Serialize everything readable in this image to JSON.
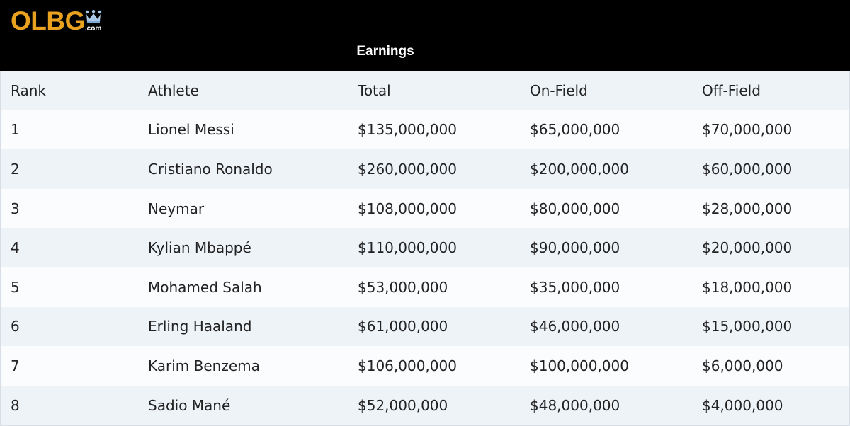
{
  "brand": {
    "logo_text": "OLBG",
    "logo_suffix": ".com",
    "logo_color": "#e8a21f",
    "crown_color": "#a9c8e8"
  },
  "table": {
    "caption": "Earnings",
    "columns": [
      "Rank",
      "Athlete",
      "Total",
      "On-Field",
      "Off-Field"
    ],
    "rows": [
      [
        "1",
        "Lionel Messi",
        "$135,000,000",
        "$65,000,000",
        "$70,000,000"
      ],
      [
        "2",
        "Cristiano Ronaldo",
        "$260,000,000",
        "$200,000,000",
        "$60,000,000"
      ],
      [
        "3",
        "Neymar",
        "$108,000,000",
        "$80,000,000",
        "$28,000,000"
      ],
      [
        "4",
        "Kylian Mbappé",
        "$110,000,000",
        "$90,000,000",
        "$20,000,000"
      ],
      [
        "5",
        "Mohamed Salah",
        "$53,000,000",
        "$35,000,000",
        "$18,000,000"
      ],
      [
        "6",
        "Erling Haaland",
        "$61,000,000",
        "$46,000,000",
        "$15,000,000"
      ],
      [
        "7",
        "Karim Benzema",
        "$106,000,000",
        "$100,000,000",
        "$6,000,000"
      ],
      [
        "8",
        "Sadio Mané",
        "$52,000,000",
        "$48,000,000",
        "$4,000,000"
      ]
    ]
  },
  "colors": {
    "header_background": "#000000",
    "row_stripe": "#eef3f8",
    "row_plain": "#fbfcfd"
  }
}
